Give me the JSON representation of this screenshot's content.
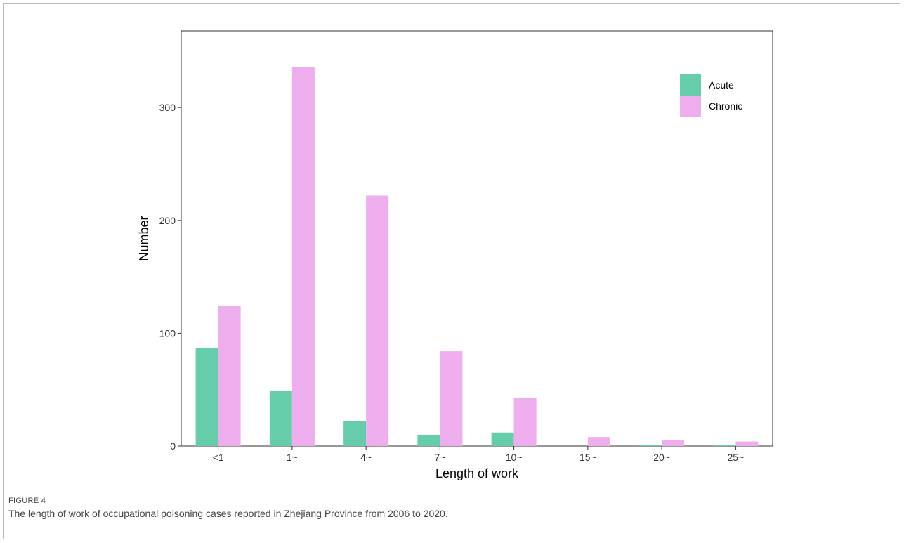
{
  "figure": {
    "label": "FIGURE 4",
    "caption": "The length of work of occupational poisoning cases reported in Zhejiang Province from 2006 to 2020."
  },
  "chart_data": {
    "type": "bar",
    "xlabel": "Length of work",
    "ylabel": "Number",
    "categories": [
      "<1",
      "1~",
      "4~",
      "7~",
      "10~",
      "15~",
      "20~",
      "25~"
    ],
    "series": [
      {
        "name": "Acute",
        "color": "#66cdaa",
        "values": [
          87,
          49,
          22,
          10,
          12,
          0,
          1,
          1
        ]
      },
      {
        "name": "Chronic",
        "color": "#eeaeee",
        "values": [
          124,
          336,
          222,
          84,
          43,
          8,
          5,
          4
        ]
      }
    ],
    "ylim": [
      0,
      368
    ],
    "yticks": [
      0,
      100,
      200,
      300
    ],
    "legend_position": "top-right",
    "grid": false
  }
}
